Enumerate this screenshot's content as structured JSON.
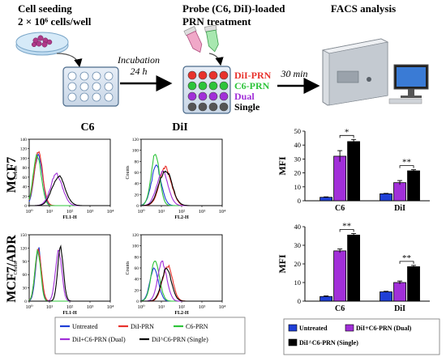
{
  "workflow": {
    "step1": {
      "line1": "Cell seeding",
      "line2": "2 × 10⁶ cells/well"
    },
    "step2": {
      "line1": "Probe (C6, DiI)-loaded",
      "line2": "PRN treatment"
    },
    "step3": {
      "line1": "FACS analysis"
    },
    "arrow1": {
      "line1": "Incubation",
      "line2": "24 h"
    },
    "arrow2": {
      "line1": "30 min"
    },
    "plate_labels": [
      {
        "text": "DiI-PRN",
        "color": "#e8322c"
      },
      {
        "text": "C6-PRN",
        "color": "#2ec43a"
      },
      {
        "text": "Dual",
        "color": "#a12fd8"
      },
      {
        "text": "Single",
        "color": "#000000"
      }
    ]
  },
  "histograms": {
    "col_titles": [
      "C6",
      "DiI"
    ],
    "row_titles": [
      "MCF7",
      "MCF7/ADR"
    ],
    "y_label": "Counts",
    "x_labels": [
      "FL1-H",
      "FL2-H"
    ],
    "x_ticks": [
      "10⁰",
      "10¹",
      "10²",
      "10³",
      "10⁴"
    ],
    "panels": [
      {
        "id": "mcf7-c6",
        "y_ticks": [
          "0",
          "20",
          "40",
          "60",
          "80",
          "100",
          "120",
          "140"
        ]
      },
      {
        "id": "mcf7-dii",
        "y_ticks": [
          "0",
          "20",
          "40",
          "60",
          "80",
          "100",
          "120"
        ]
      },
      {
        "id": "adr-c6",
        "y_ticks": [
          "0",
          "30",
          "60",
          "90",
          "120",
          "150"
        ]
      },
      {
        "id": "adr-dii",
        "y_ticks": [
          "0",
          "20",
          "40",
          "60",
          "80",
          "100",
          "120"
        ]
      }
    ],
    "legend": [
      {
        "label": "Untreated",
        "color": "#1f3fd6"
      },
      {
        "label": "DiI-PRN",
        "color": "#e8322c"
      },
      {
        "label": "C6-PRN",
        "color": "#2ec43a"
      },
      {
        "label": "DiI+C6-PRN (Dual)",
        "color": "#a12fd8"
      },
      {
        "label": "DiI^C6-PRN (Single)",
        "color": "#000000"
      }
    ]
  },
  "chart_data": [
    {
      "type": "bar",
      "ylabel": "MFI",
      "ylim": [
        0,
        50
      ],
      "y_ticks": [
        "0",
        "10",
        "20",
        "30",
        "40",
        "50"
      ],
      "categories": [
        "C6",
        "DiI"
      ],
      "series": [
        {
          "name": "Untreated",
          "color": "#1f3fd6",
          "values": [
            2.5,
            5
          ],
          "errors": [
            0.3,
            0.3
          ]
        },
        {
          "name": "DiI+C6-PRN (Dual)",
          "color": "#a12fd8",
          "values": [
            32,
            13
          ],
          "errors": [
            4,
            1.5
          ]
        },
        {
          "name": "DiI^C6-PRN (Single)",
          "color": "#000000",
          "values": [
            42.5,
            21.5
          ],
          "errors": [
            1.5,
            0.8
          ]
        }
      ],
      "significance": [
        "*",
        "**"
      ]
    },
    {
      "type": "bar",
      "ylabel": "MFI",
      "ylim": [
        0,
        40
      ],
      "y_ticks": [
        "0",
        "10",
        "20",
        "30",
        "40"
      ],
      "categories": [
        "C6",
        "DiI"
      ],
      "series": [
        {
          "name": "Untreated",
          "color": "#1f3fd6",
          "values": [
            2.5,
            5
          ],
          "errors": [
            0.3,
            0.3
          ]
        },
        {
          "name": "DiI+C6-PRN (Dual)",
          "color": "#a12fd8",
          "values": [
            27,
            10
          ],
          "errors": [
            1,
            0.8
          ]
        },
        {
          "name": "DiI^C6-PRN (Single)",
          "color": "#000000",
          "values": [
            35.5,
            18.5
          ],
          "errors": [
            0.8,
            0.7
          ]
        }
      ],
      "significance": [
        "**",
        "**"
      ]
    }
  ],
  "bar_legend": [
    {
      "label": "Untreated",
      "color": "#1f3fd6"
    },
    {
      "label": "DiI+C6-PRN (Dual)",
      "color": "#a12fd8"
    },
    {
      "label": "DiI^C6-PRN (Single)",
      "color": "#000000"
    }
  ]
}
